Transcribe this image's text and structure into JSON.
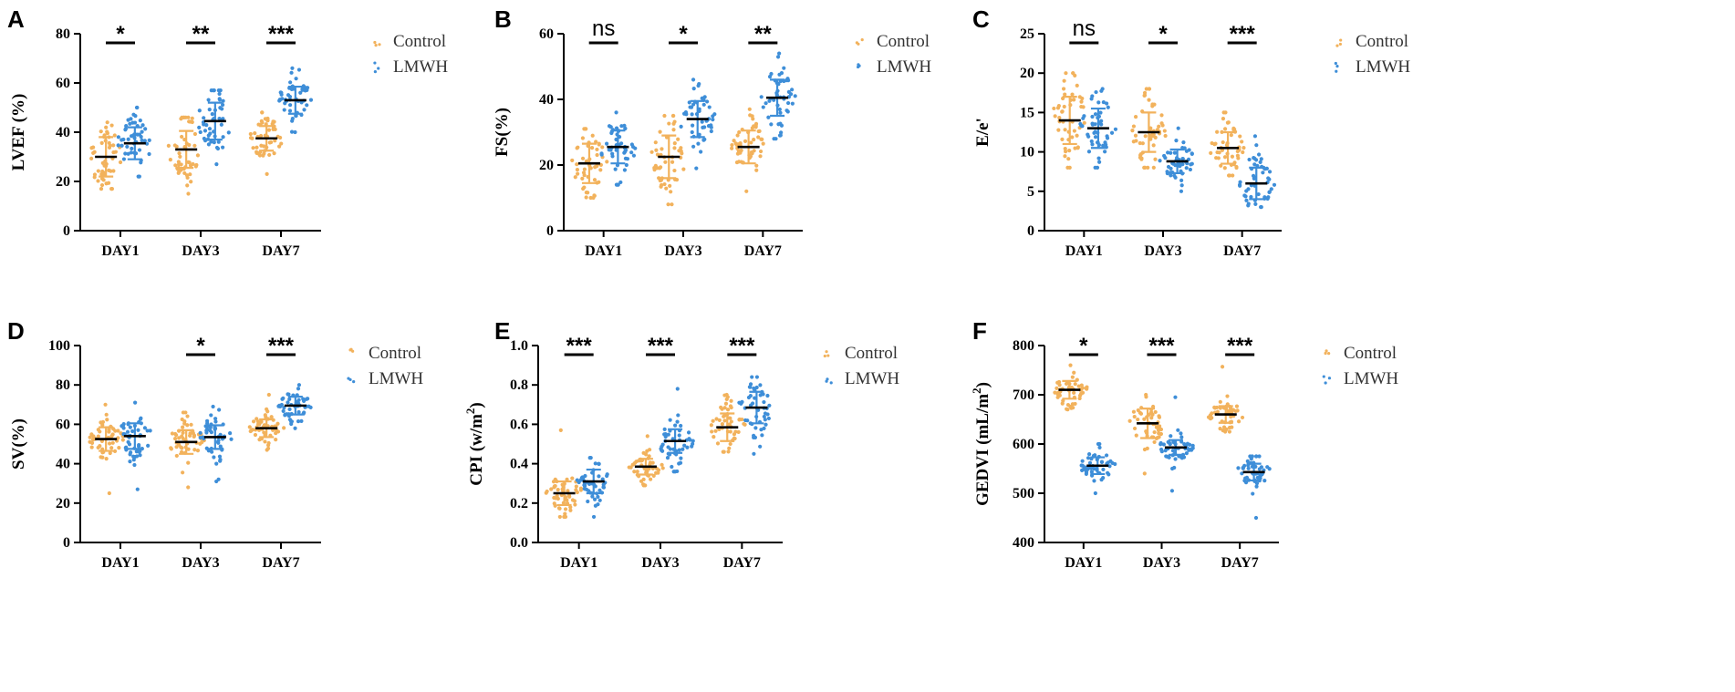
{
  "colors": {
    "control": "#F2B25C",
    "lmwh": "#3E8ED8",
    "axis": "#000000",
    "sig": "#000000"
  },
  "legend": {
    "control": "Control",
    "lmwh": "LMWH"
  },
  "chart_data": [
    {
      "panel": "A",
      "type": "scatter",
      "ylabel": "LVEF (%)",
      "categories": [
        "DAY1",
        "DAY3",
        "DAY7"
      ],
      "ylim": [
        0,
        80
      ],
      "yticks": [
        0,
        20,
        40,
        60,
        80
      ],
      "ytick_labels": [
        "0",
        "20",
        "40",
        "60",
        "80"
      ],
      "series": [
        {
          "name": "Control",
          "mean": [
            30,
            33,
            37.5
          ],
          "sd": [
            8,
            7.5,
            5
          ],
          "min": [
            17,
            15,
            23
          ],
          "max": [
            44,
            46,
            48
          ],
          "n": 50
        },
        {
          "name": "LMWH",
          "mean": [
            35.5,
            44.5,
            53
          ],
          "sd": [
            6.5,
            7.5,
            5.5
          ],
          "min": [
            22,
            27,
            40
          ],
          "max": [
            50,
            57,
            66
          ],
          "n": 50
        }
      ],
      "significance": [
        "*",
        "**",
        "***"
      ]
    },
    {
      "panel": "B",
      "type": "scatter",
      "ylabel": "FS(%)",
      "categories": [
        "DAY1",
        "DAY3",
        "DAY7"
      ],
      "ylim": [
        0,
        60
      ],
      "yticks": [
        0,
        20,
        40,
        60
      ],
      "ytick_labels": [
        "0",
        "20",
        "40",
        "60"
      ],
      "series": [
        {
          "name": "Control",
          "mean": [
            20.5,
            22.5,
            25.5
          ],
          "sd": [
            6,
            6.5,
            5
          ],
          "min": [
            10,
            8,
            12
          ],
          "max": [
            31,
            35,
            37
          ],
          "n": 50
        },
        {
          "name": "LMWH",
          "mean": [
            25.5,
            34,
            40.5
          ],
          "sd": [
            5,
            5.5,
            5.5
          ],
          "min": [
            14,
            19,
            28
          ],
          "max": [
            36,
            46,
            54
          ],
          "n": 50
        }
      ],
      "significance": [
        "ns",
        "*",
        "**"
      ]
    },
    {
      "panel": "C",
      "type": "scatter",
      "ylabel": "E/e'",
      "categories": [
        "DAY1",
        "DAY3",
        "DAY7"
      ],
      "ylim": [
        0,
        25
      ],
      "yticks": [
        0,
        5,
        10,
        15,
        20,
        25
      ],
      "ytick_labels": [
        "0",
        "5",
        "10",
        "15",
        "20",
        "25"
      ],
      "series": [
        {
          "name": "Control",
          "mean": [
            14,
            12.5,
            10.5
          ],
          "sd": [
            3,
            2.5,
            2
          ],
          "min": [
            8,
            8,
            7
          ],
          "max": [
            20,
            18,
            15
          ],
          "n": 50
        },
        {
          "name": "LMWH",
          "mean": [
            13,
            8.8,
            6
          ],
          "sd": [
            2.5,
            1.5,
            2
          ],
          "min": [
            8,
            5,
            3
          ],
          "max": [
            18,
            13,
            12
          ],
          "n": 50
        }
      ],
      "significance": [
        "ns",
        "*",
        "***"
      ]
    },
    {
      "panel": "D",
      "type": "scatter",
      "ylabel": "SV(%)",
      "categories": [
        "DAY1",
        "DAY3",
        "DAY7"
      ],
      "ylim": [
        0,
        100
      ],
      "yticks": [
        0,
        20,
        40,
        60,
        80,
        100
      ],
      "ytick_labels": [
        "0",
        "20",
        "40",
        "60",
        "80",
        "100"
      ],
      "series": [
        {
          "name": "Control",
          "mean": [
            52.5,
            51,
            58
          ],
          "sd": [
            6,
            6,
            4.5
          ],
          "min": [
            25,
            28,
            47
          ],
          "max": [
            70,
            66,
            75
          ],
          "n": 50
        },
        {
          "name": "LMWH",
          "mean": [
            54,
            53.5,
            69.5
          ],
          "sd": [
            6.5,
            6,
            4.5
          ],
          "min": [
            27,
            31,
            58
          ],
          "max": [
            71,
            69,
            80
          ],
          "n": 50
        }
      ],
      "significance": [
        "",
        "*",
        "***"
      ]
    },
    {
      "panel": "E",
      "type": "scatter",
      "ylabel": "CPI (w/m²)",
      "categories": [
        "DAY1",
        "DAY3",
        "DAY7"
      ],
      "ylim": [
        0,
        1.0
      ],
      "yticks": [
        0,
        0.2,
        0.4,
        0.6,
        0.8,
        1.0
      ],
      "ytick_labels": [
        "0.0",
        "0.2",
        "0.4",
        "0.6",
        "0.8",
        "1.0"
      ],
      "series": [
        {
          "name": "Control",
          "mean": [
            0.25,
            0.385,
            0.585
          ],
          "sd": [
            0.06,
            0.04,
            0.07
          ],
          "min": [
            0.13,
            0.29,
            0.46
          ],
          "max": [
            0.57,
            0.54,
            0.75
          ],
          "n": 50
        },
        {
          "name": "LMWH",
          "mean": [
            0.31,
            0.515,
            0.685
          ],
          "sd": [
            0.06,
            0.06,
            0.08
          ],
          "min": [
            0.13,
            0.36,
            0.45
          ],
          "max": [
            0.43,
            0.78,
            0.84
          ],
          "n": 50
        }
      ],
      "significance": [
        "***",
        "***",
        "***"
      ]
    },
    {
      "panel": "F",
      "type": "scatter",
      "ylabel": "GEDVI (mL/m²)",
      "categories": [
        "DAY1",
        "DAY3",
        "DAY7"
      ],
      "ylim": [
        400,
        800
      ],
      "yticks": [
        400,
        500,
        600,
        700,
        800
      ],
      "ytick_labels": [
        "400",
        "500",
        "600",
        "700",
        "800"
      ],
      "series": [
        {
          "name": "Control",
          "mean": [
            710,
            642,
            660
          ],
          "sd": [
            18,
            30,
            17
          ],
          "min": [
            670,
            540,
            625
          ],
          "max": [
            760,
            700,
            757
          ],
          "n": 50
        },
        {
          "name": "LMWH",
          "mean": [
            556,
            593,
            543
          ],
          "sd": [
            17,
            15,
            17
          ],
          "min": [
            500,
            505,
            450
          ],
          "max": [
            600,
            695,
            575
          ],
          "n": 50
        }
      ],
      "significance": [
        "*",
        "***",
        "***"
      ]
    }
  ]
}
